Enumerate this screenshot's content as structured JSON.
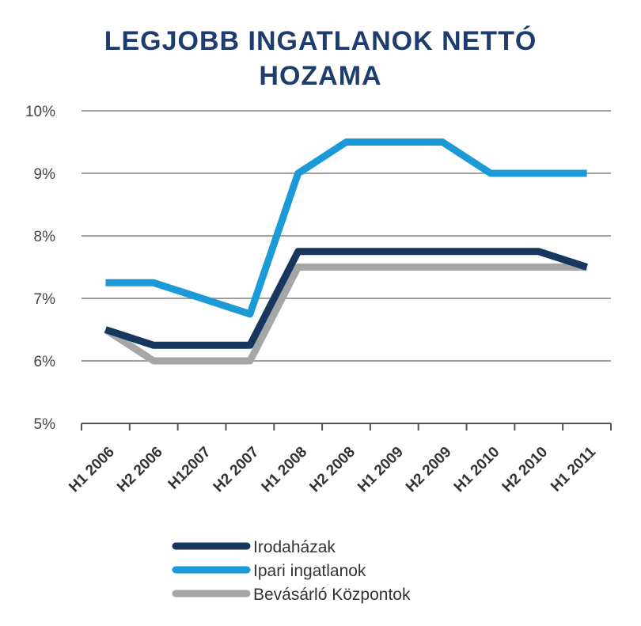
{
  "chart_data": {
    "type": "line",
    "title": [
      "LEGJOBB INGATLANOK NETTÓ",
      "HOZAMA"
    ],
    "xlabel": "",
    "ylabel": "",
    "categories": [
      "H1 2006",
      "H2 2006",
      "H12007",
      "H2 2007",
      "H1 2008",
      "H2 2008",
      "H1 2009",
      "H2 2009",
      "H1 2010",
      "H2 2010",
      "H1 2011"
    ],
    "yticks": [
      "5%",
      "6%",
      "7%",
      "8%",
      "9%",
      "10%"
    ],
    "ylim": [
      5,
      10
    ],
    "grid": true,
    "legend_position": "bottom",
    "series": [
      {
        "name": "Irodaházak",
        "color": "#17375e",
        "values": [
          6.5,
          6.25,
          6.25,
          6.25,
          7.75,
          7.75,
          7.75,
          7.75,
          7.75,
          7.75,
          7.5
        ]
      },
      {
        "name": "Ipari ingatlanok",
        "color": "#1a9bd7",
        "values": [
          7.25,
          7.25,
          7.0,
          6.75,
          9.0,
          9.5,
          9.5,
          9.5,
          9.0,
          9.0,
          9.0
        ]
      },
      {
        "name": "Bevásárló Központok",
        "color": "#a6a6a6",
        "values": [
          6.5,
          6.0,
          6.0,
          6.0,
          7.5,
          7.5,
          7.5,
          7.5,
          7.5,
          7.5,
          7.5
        ]
      }
    ],
    "draw_order": [
      2,
      0,
      1
    ]
  }
}
